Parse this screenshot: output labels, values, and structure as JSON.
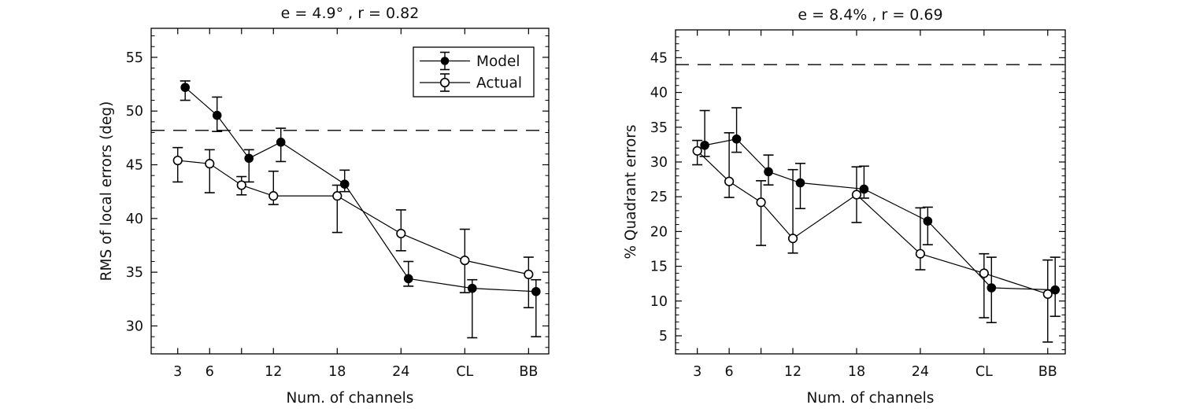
{
  "figure": {
    "background": "#ffffff",
    "line_color": "#000000",
    "text_color": "#111111"
  },
  "chart_data": [
    {
      "type": "line",
      "title": "e = 4.9° , r = 0.82",
      "xlabel": "Num. of channels",
      "ylabel": "RMS of local errors (deg)",
      "categories": [
        "3",
        "6",
        "9",
        "12",
        "18",
        "24",
        "CL",
        "BB"
      ],
      "x_positions": [
        3,
        6,
        9,
        12,
        18,
        24,
        30,
        36
      ],
      "x_tick_labels": [
        "3",
        "6",
        "",
        "12",
        "18",
        "24",
        "CL",
        "BB"
      ],
      "ylim": [
        27.4,
        57.7
      ],
      "yticks": [
        30,
        35,
        40,
        45,
        50,
        55
      ],
      "minor_tick_step": 1,
      "grid": false,
      "dashed_reference_y": 48.2,
      "legend": {
        "position": "upper right",
        "entries": [
          "Model",
          "Actual"
        ]
      },
      "series": [
        {
          "name": "Model",
          "marker": "filled-circle",
          "values": [
            52.2,
            49.6,
            45.6,
            47.1,
            43.2,
            34.4,
            33.5,
            33.2
          ],
          "err_lo": [
            51.0,
            48.1,
            43.4,
            45.3,
            42.5,
            33.7,
            28.9,
            29.0
          ],
          "err_hi": [
            52.8,
            51.3,
            46.4,
            48.4,
            44.5,
            36.0,
            34.3,
            34.3
          ]
        },
        {
          "name": "Actual",
          "marker": "open-circle",
          "values": [
            45.4,
            45.1,
            43.1,
            42.1,
            42.1,
            38.6,
            36.1,
            34.8
          ],
          "err_lo": [
            43.4,
            42.4,
            42.2,
            41.3,
            38.7,
            37.0,
            33.1,
            31.7
          ],
          "err_hi": [
            46.6,
            46.4,
            43.9,
            44.4,
            43.1,
            40.8,
            39.0,
            36.4
          ]
        }
      ]
    },
    {
      "type": "line",
      "title": "e = 8.4% , r = 0.69",
      "xlabel": "Num. of channels",
      "ylabel": "% Quadrant errors",
      "categories": [
        "3",
        "6",
        "9",
        "12",
        "18",
        "24",
        "CL",
        "BB"
      ],
      "x_positions": [
        3,
        6,
        9,
        12,
        18,
        24,
        30,
        36
      ],
      "x_tick_labels": [
        "3",
        "6",
        "",
        "12",
        "18",
        "24",
        "CL",
        "BB"
      ],
      "ylim": [
        2.4,
        49.0
      ],
      "yticks": [
        5,
        10,
        15,
        20,
        25,
        30,
        35,
        40,
        45
      ],
      "minor_tick_step": 1,
      "grid": false,
      "dashed_reference_y": 44.0,
      "legend": null,
      "series": [
        {
          "name": "Model",
          "marker": "filled-circle",
          "values": [
            32.4,
            33.3,
            28.6,
            27.0,
            26.1,
            21.5,
            11.9,
            11.6
          ],
          "err_lo": [
            30.8,
            31.4,
            26.7,
            23.3,
            24.8,
            18.1,
            6.9,
            7.8
          ],
          "err_hi": [
            37.4,
            37.8,
            31.0,
            29.8,
            29.4,
            23.5,
            16.3,
            16.3
          ]
        },
        {
          "name": "Actual",
          "marker": "open-circle",
          "values": [
            31.6,
            27.2,
            24.2,
            19.0,
            25.3,
            16.8,
            14.0,
            11.0
          ],
          "err_lo": [
            29.6,
            24.9,
            18.0,
            16.9,
            21.3,
            14.5,
            7.6,
            4.1
          ],
          "err_hi": [
            33.1,
            34.2,
            27.3,
            28.9,
            29.3,
            23.4,
            16.8,
            15.9
          ]
        }
      ]
    }
  ]
}
